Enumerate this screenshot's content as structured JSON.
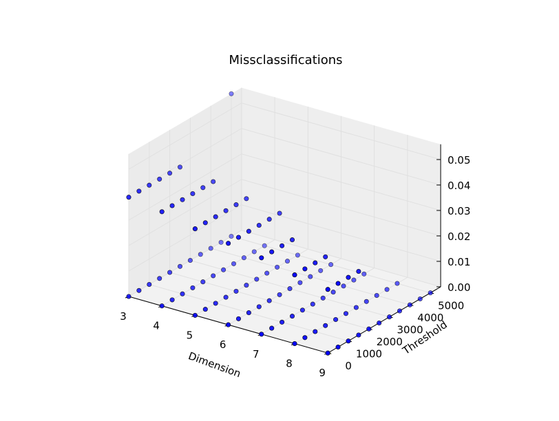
{
  "chart_data": {
    "type": "scatter",
    "title": "Missclassifications",
    "xlabel": "Dimension",
    "ylabel": "Threshold",
    "zlabel": "",
    "xlim": [
      3,
      9
    ],
    "ylim": [
      0,
      5500
    ],
    "zlim": [
      0,
      0.056
    ],
    "x_ticks": [
      "3",
      "4",
      "5",
      "6",
      "7",
      "8",
      "9"
    ],
    "y_ticks": [
      "0",
      "1000",
      "2000",
      "3000",
      "4000",
      "5000"
    ],
    "z_ticks": [
      "0.00",
      "0.01",
      "0.02",
      "0.03",
      "0.04",
      "0.05"
    ],
    "grid": true,
    "marker_color": "#0000ff",
    "points_groups": [
      {
        "dimension": 3,
        "threshold_start": 0,
        "threshold_end": 5000,
        "threshold_step": 500,
        "misclassification": 0
      },
      {
        "dimension": 4,
        "threshold_start": 0,
        "threshold_end": 5000,
        "threshold_step": 500,
        "misclassification": 0
      },
      {
        "dimension": 5,
        "threshold_start": 0,
        "threshold_end": 5000,
        "threshold_step": 500,
        "misclassification": 0
      },
      {
        "dimension": 6,
        "threshold_start": 0,
        "threshold_end": 5000,
        "threshold_step": 500,
        "misclassification": 0
      },
      {
        "dimension": 7,
        "threshold_start": 0,
        "threshold_end": 5000,
        "threshold_step": 500,
        "misclassification": 0
      },
      {
        "dimension": 8,
        "threshold_start": 0,
        "threshold_end": 5000,
        "threshold_step": 500,
        "misclassification": 0
      },
      {
        "dimension": 9,
        "threshold_start": 0,
        "threshold_end": 5000,
        "threshold_step": 500,
        "misclassification": 0
      },
      {
        "dimension": 3,
        "threshold_start": 0,
        "threshold_end": 2500,
        "threshold_step": 500,
        "misclassification": 0.039
      },
      {
        "dimension": 4,
        "threshold_start": 0,
        "threshold_end": 2500,
        "threshold_step": 500,
        "misclassification": 0.037
      },
      {
        "dimension": 5,
        "threshold_start": 0,
        "threshold_end": 2500,
        "threshold_step": 500,
        "misclassification": 0.034
      },
      {
        "dimension": 6,
        "threshold_start": 0,
        "threshold_end": 2500,
        "threshold_step": 500,
        "misclassification": 0.032
      },
      {
        "dimension": 7,
        "threshold_start": 0,
        "threshold_end": 1500,
        "threshold_step": 500,
        "misclassification": 0.03
      },
      {
        "dimension": 8,
        "threshold_start": 0,
        "threshold_end": 1500,
        "threshold_step": 500,
        "misclassification": 0.027
      },
      {
        "dimension": 9,
        "threshold_start": 0,
        "threshold_end": 1500,
        "threshold_step": 500,
        "misclassification": 0.025
      },
      {
        "dimension": 3,
        "threshold_start": 5000,
        "threshold_end": 5000,
        "threshold_step": 500,
        "misclassification": 0.056
      }
    ]
  }
}
